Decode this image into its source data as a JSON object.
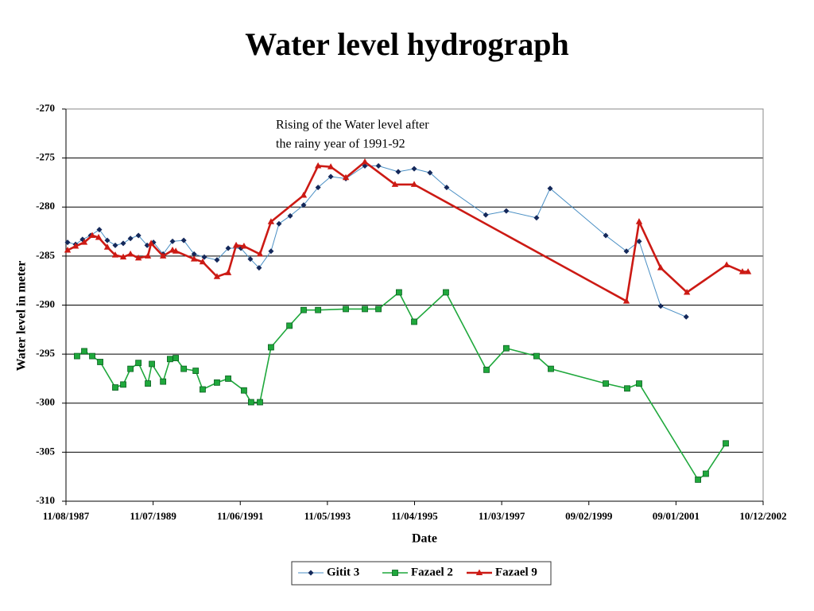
{
  "chart_data": {
    "type": "line",
    "title": "Water level hydrograph",
    "x_label": "Date",
    "y_label": "Water level in meter",
    "annotation": [
      "Rising of the Water level after",
      "the rainy year of 1991-92"
    ],
    "xlim": [
      "1987-08-11",
      "2002-12-10"
    ],
    "xticks": [
      {
        "value": "1987-08-11",
        "label": "11/08/1987"
      },
      {
        "value": "1989-07-11",
        "label": "11/07/1989"
      },
      {
        "value": "1991-06-11",
        "label": "11/06/1991"
      },
      {
        "value": "1993-05-11",
        "label": "11/05/1993"
      },
      {
        "value": "1995-04-11",
        "label": "11/04/1995"
      },
      {
        "value": "1997-03-11",
        "label": "11/03/1997"
      },
      {
        "value": "1999-02-09",
        "label": "09/02/1999"
      },
      {
        "value": "2001-01-09",
        "label": "09/01/2001"
      },
      {
        "value": "2002-12-10",
        "label": "10/12/2002"
      }
    ],
    "ylim": [
      -310,
      -270
    ],
    "yticks": [
      -310,
      -305,
      -300,
      -295,
      -290,
      -285,
      -280,
      -275,
      -270
    ],
    "grid": true,
    "legend": "bottom",
    "series": [
      {
        "name": "Gitit 3",
        "color": "#4a8fc4",
        "marker_color": "#14285a",
        "marker": "diamond",
        "width": 1,
        "x": [
          "1987-08-24",
          "1987-10-27",
          "1987-12-22",
          "1988-02-25",
          "1988-05-05",
          "1988-07-08",
          "1988-09-10",
          "1988-11-13",
          "1989-01-10",
          "1989-03-15",
          "1989-05-24",
          "1989-07-14",
          "1989-09-29",
          "1989-12-14",
          "1990-03-14",
          "1990-06-05",
          "1990-08-26",
          "1990-12-06",
          "1991-03-06",
          "1991-06-16",
          "1991-08-31",
          "1991-11-09",
          "1992-02-13",
          "1992-04-17",
          "1992-07-16",
          "1992-11-01",
          "1993-02-25",
          "1993-06-07",
          "1993-10-06",
          "1994-03-08",
          "1994-06-25",
          "1994-12-01",
          "1995-04-08",
          "1995-08-13",
          "1995-12-25",
          "1996-11-03",
          "1997-04-17",
          "1997-12-16",
          "1998-04-04",
          "1999-06-25",
          "1999-12-08",
          "2000-03-19",
          "2000-09-08",
          "2001-04-01"
        ],
        "values": [
          -283.6,
          -283.8,
          -283.3,
          -282.9,
          -282.3,
          -283.4,
          -283.9,
          -283.7,
          -283.2,
          -282.9,
          -283.9,
          -283.6,
          -284.8,
          -283.5,
          -283.4,
          -284.8,
          -285.1,
          -285.4,
          -284.2,
          -284.2,
          -285.3,
          -286.2,
          -284.5,
          -281.7,
          -280.9,
          -279.8,
          -278.0,
          -276.9,
          -277.1,
          -275.8,
          -275.8,
          -276.4,
          -276.1,
          -276.5,
          -278.0,
          -280.8,
          -280.4,
          -281.1,
          -278.1,
          -282.9,
          -284.5,
          -283.5,
          -290.1,
          -291.2
        ]
      },
      {
        "name": "Fazael 2",
        "color": "#1fa83c",
        "marker_color": "#1fa83c",
        "marker": "square",
        "width": 1.6,
        "x": [
          "1987-11-08",
          "1988-01-05",
          "1988-03-09",
          "1988-05-12",
          "1988-09-10",
          "1988-11-13",
          "1989-01-10",
          "1989-03-15",
          "1989-05-30",
          "1989-07-01",
          "1989-09-29",
          "1989-11-24",
          "1990-01-09",
          "1990-03-14",
          "1990-06-18",
          "1990-08-13",
          "1990-12-06",
          "1991-03-06",
          "1991-07-11",
          "1991-09-06",
          "1991-11-16",
          "1992-02-13",
          "1992-07-10",
          "1992-11-01",
          "1993-02-25",
          "1993-10-06",
          "1994-03-08",
          "1994-06-25",
          "1994-12-07",
          "1995-04-08",
          "1995-12-19",
          "1996-11-09",
          "1997-04-17",
          "1997-12-16",
          "1998-04-10",
          "1999-06-25",
          "1999-12-14",
          "2000-03-19",
          "2001-07-05",
          "2001-09-06",
          "2002-02-13"
        ],
        "values": [
          -295.2,
          -294.7,
          -295.2,
          -295.8,
          -298.4,
          -298.1,
          -296.5,
          -295.9,
          -298.0,
          -296.0,
          -297.8,
          -295.5,
          -295.4,
          -296.5,
          -296.7,
          -298.6,
          -297.9,
          -297.5,
          -298.7,
          -299.9,
          -299.9,
          -294.3,
          -292.1,
          -290.5,
          -290.5,
          -290.4,
          -290.4,
          -290.4,
          -288.7,
          -291.7,
          -288.7,
          -296.6,
          -294.4,
          -295.2,
          -296.5,
          -298.0,
          -298.5,
          -298.0,
          -307.8,
          -307.2,
          -304.1
        ]
      },
      {
        "name": "Fazael 9",
        "color": "#cc1a14",
        "marker_color": "#cc1a14",
        "marker": "triangle",
        "width": 2.6,
        "x": [
          "1987-08-24",
          "1987-10-27",
          "1988-01-05",
          "1988-03-09",
          "1988-04-29",
          "1988-07-08",
          "1988-09-10",
          "1988-11-13",
          "1989-01-10",
          "1989-03-15",
          "1989-05-30",
          "1989-06-25",
          "1989-09-29",
          "1989-12-14",
          "1990-01-09",
          "1990-06-05",
          "1990-08-13",
          "1990-12-06",
          "1991-03-06",
          "1991-05-09",
          "1991-07-11",
          "1991-11-16",
          "1992-02-13",
          "1992-11-01",
          "1993-02-25",
          "1993-06-07",
          "1993-10-06",
          "1994-03-08",
          "1994-11-05",
          "1995-04-08",
          "1999-12-08",
          "2000-03-19",
          "2000-09-08",
          "2001-04-07",
          "2002-02-20",
          "2002-06-27",
          "2002-08-11"
        ],
        "values": [
          -284.4,
          -284.0,
          -283.6,
          -282.9,
          -283.1,
          -284.1,
          -284.9,
          -285.1,
          -284.8,
          -285.2,
          -285.0,
          -283.7,
          -285.0,
          -284.4,
          -284.5,
          -285.3,
          -285.6,
          -287.1,
          -286.7,
          -283.9,
          -284.0,
          -284.8,
          -281.5,
          -278.8,
          -275.8,
          -275.9,
          -277.0,
          -275.4,
          -277.7,
          -277.7,
          -289.6,
          -281.5,
          -286.2,
          -288.7,
          -285.9,
          -286.6,
          -286.6
        ]
      }
    ]
  }
}
